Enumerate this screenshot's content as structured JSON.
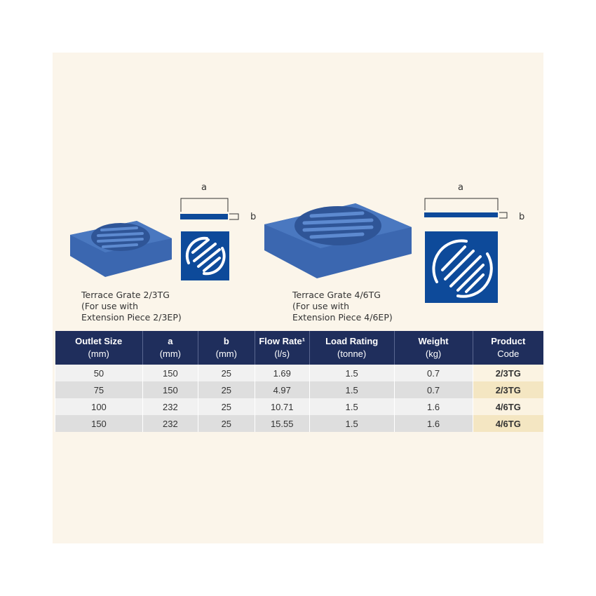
{
  "products": [
    {
      "caption_line1": "Terrace Grate 2/3TG",
      "caption_line2": "(For use with",
      "caption_line3": "Extension Piece 2/3EP)",
      "dim_a": "a",
      "dim_b": "b"
    },
    {
      "caption_line1": "Terrace Grate 4/6TG",
      "caption_line2": "(For use with",
      "caption_line3": "Extension Piece 4/6EP)",
      "dim_a": "a",
      "dim_b": "b"
    }
  ],
  "table": {
    "headers": [
      {
        "title": "Outlet Size",
        "unit": "(mm)"
      },
      {
        "title": "a",
        "unit": "(mm)"
      },
      {
        "title": "b",
        "unit": "(mm)"
      },
      {
        "title": "Flow Rate¹",
        "unit": "(l/s)"
      },
      {
        "title": "Load Rating",
        "unit": "(tonne)"
      },
      {
        "title": "Weight",
        "unit": "(kg)"
      },
      {
        "title": "Product",
        "unit": "Code"
      }
    ],
    "rows": [
      [
        "50",
        "150",
        "25",
        "1.69",
        "1.5",
        "0.7",
        "2/3TG"
      ],
      [
        "75",
        "150",
        "25",
        "4.97",
        "1.5",
        "0.7",
        "2/3TG"
      ],
      [
        "100",
        "232",
        "25",
        "10.71",
        "1.5",
        "1.6",
        "4/6TG"
      ],
      [
        "150",
        "232",
        "25",
        "15.55",
        "1.5",
        "1.6",
        "4/6TG"
      ]
    ]
  },
  "colors": {
    "header": "#1f2e5c",
    "grate": "#3b67b0",
    "diagram": "#0d4a9a",
    "background": "#fbf5ea"
  }
}
